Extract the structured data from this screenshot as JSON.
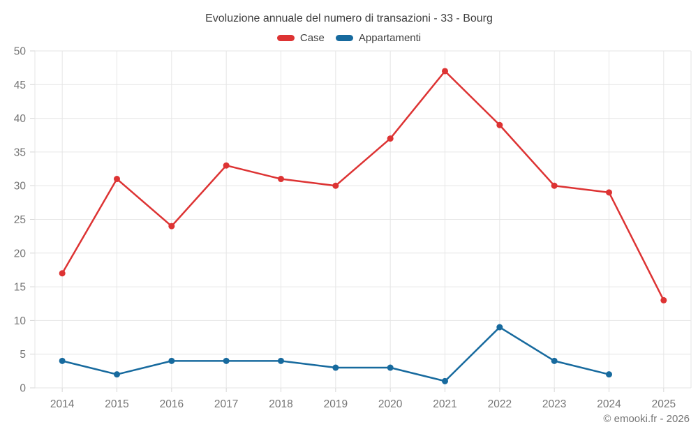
{
  "footer": {
    "credit": "© emooki.fr - 2026"
  },
  "colors": {
    "background": "#ffffff",
    "grid": "#e6e6e6",
    "axis": "#d6d6d6",
    "tick_label": "#757575",
    "title_text": "#3f3f3f",
    "case_red": "#dd3333",
    "appartamenti_blue": "#176a9e"
  },
  "chart_data": {
    "type": "line",
    "title": "Evoluzione annuale del numero di transazioni - 33 - Bourg",
    "categories": [
      "2014",
      "2015",
      "2016",
      "2017",
      "2018",
      "2019",
      "2020",
      "2021",
      "2022",
      "2023",
      "2024",
      "2025"
    ],
    "series": [
      {
        "name": "Case",
        "color": "#dd3333",
        "values": [
          17,
          31,
          24,
          33,
          31,
          30,
          37,
          47,
          39,
          30,
          29,
          13
        ]
      },
      {
        "name": "Appartamenti",
        "color": "#176a9e",
        "values": [
          4,
          2,
          4,
          4,
          4,
          3,
          3,
          1,
          9,
          4,
          2,
          null
        ]
      }
    ],
    "xlabel": "",
    "ylabel": "",
    "ylim": [
      0,
      50
    ],
    "y_tick_step": 5,
    "y_ticks": [
      0,
      5,
      10,
      15,
      20,
      25,
      30,
      35,
      40,
      45,
      50
    ],
    "grid": true,
    "legend_position": "top",
    "marker": "circle"
  }
}
